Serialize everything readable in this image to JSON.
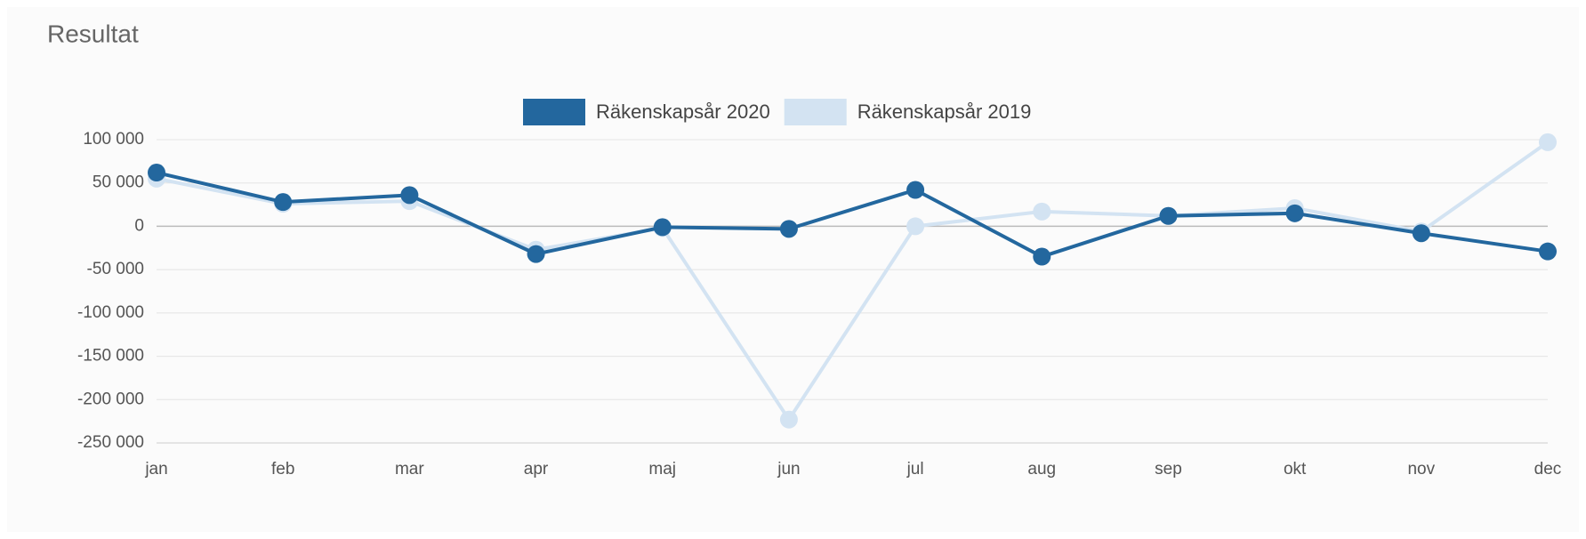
{
  "chart_data": {
    "type": "line",
    "title": "Resultat",
    "categories": [
      "jan",
      "feb",
      "mar",
      "apr",
      "maj",
      "jun",
      "jul",
      "aug",
      "sep",
      "okt",
      "nov",
      "dec"
    ],
    "series": [
      {
        "name": "Räkenskapsår 2020",
        "color": "#23679e",
        "values": [
          62000,
          28000,
          36000,
          -32000,
          -1000,
          -3000,
          42000,
          -35000,
          12000,
          15000,
          -8000,
          -29000
        ]
      },
      {
        "name": "Räkenskapsår 2019",
        "color": "#d3e3f2",
        "values": [
          55000,
          26000,
          29000,
          -27000,
          -2000,
          -223000,
          0,
          17000,
          12000,
          21000,
          -6000,
          97000
        ]
      }
    ],
    "ylim": [
      -250000,
      100000
    ],
    "yticks": [
      {
        "value": 100000,
        "label": "100 000"
      },
      {
        "value": 50000,
        "label": "50 000"
      },
      0,
      {
        "value": -50000,
        "label": "-50 000"
      },
      {
        "value": -100000,
        "label": "-100 000"
      },
      {
        "value": -150000,
        "label": "-150 000"
      },
      {
        "value": -200000,
        "label": "-200 000"
      },
      {
        "value": -250000,
        "label": "-250 000"
      }
    ],
    "grid": true,
    "legend": "top"
  }
}
